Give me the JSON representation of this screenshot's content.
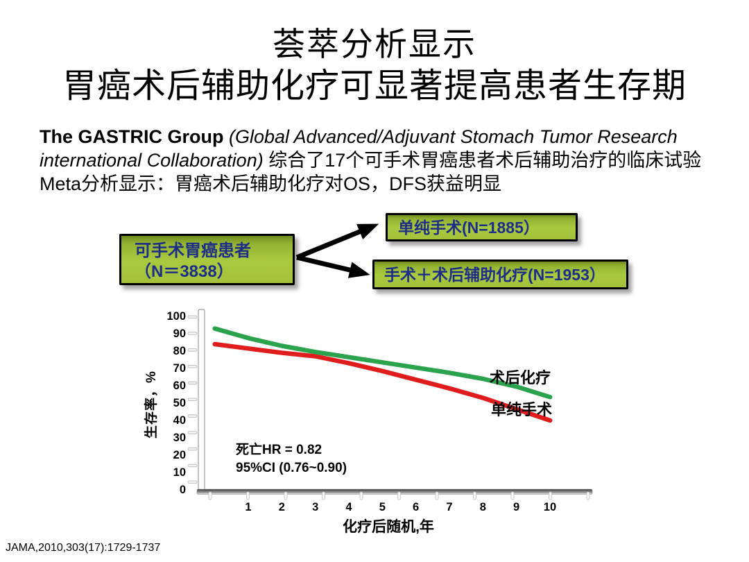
{
  "slide": {
    "title_line1": "荟萃分析显示",
    "title_line2": "胃癌术后辅助化疗可显著提高患者生存期"
  },
  "intro": {
    "group_bold": "The GASTRIC Group ",
    "group_italic": "(Global Advanced/Adjuvant Stomach Tumor Research international Collaboration) ",
    "body_cn": "综合了17个可手术胃癌患者术后辅助治疗的临床试验Meta分析显示：胃癌术后辅助化疗对OS，DFS获益明显"
  },
  "flow": {
    "source_line1": "可手术胃癌患者",
    "source_line2": "（N＝3838）",
    "branch_top": "单纯手术(N=1885）",
    "branch_bottom": "手术＋术后辅助化疗(N=1953）",
    "box_fill": "#a9c93f",
    "box_fill_dark": "#718c22",
    "box_border": "#000000",
    "box_text_color": "#1e2d87",
    "arrow_color": "#000000"
  },
  "chart_data": {
    "type": "line",
    "x": [
      0,
      1,
      2,
      3,
      4,
      5,
      6,
      7,
      8,
      9,
      10
    ],
    "series": [
      {
        "name": "术后化疗",
        "color": "#2aa34c",
        "values": [
          93,
          87.5,
          83,
          79.5,
          76.5,
          73.5,
          70.5,
          67.5,
          64,
          59.5,
          53.5
        ]
      },
      {
        "name": "单纯手术",
        "color": "#e01c1c",
        "values": [
          84,
          81.5,
          79,
          77,
          73,
          68.5,
          63.5,
          58.5,
          53,
          46.5,
          40
        ]
      }
    ],
    "title": "",
    "xlabel": "化疗后随机,年",
    "ylabel": "生存率，%",
    "ylim": [
      0,
      100
    ],
    "yticks": [
      0,
      10,
      20,
      30,
      40,
      50,
      60,
      70,
      80,
      90,
      100
    ],
    "xticks": [
      1,
      2,
      3,
      4,
      5,
      6,
      7,
      8,
      9,
      10
    ],
    "grid": false,
    "legend_position": "inline-right-of-lines",
    "annotation_line1": "死亡HR = 0.82",
    "annotation_line2": "95%CI (0.76~0.90)"
  },
  "footer": {
    "citation": "JAMA,2010,303(17):1729-1737"
  }
}
